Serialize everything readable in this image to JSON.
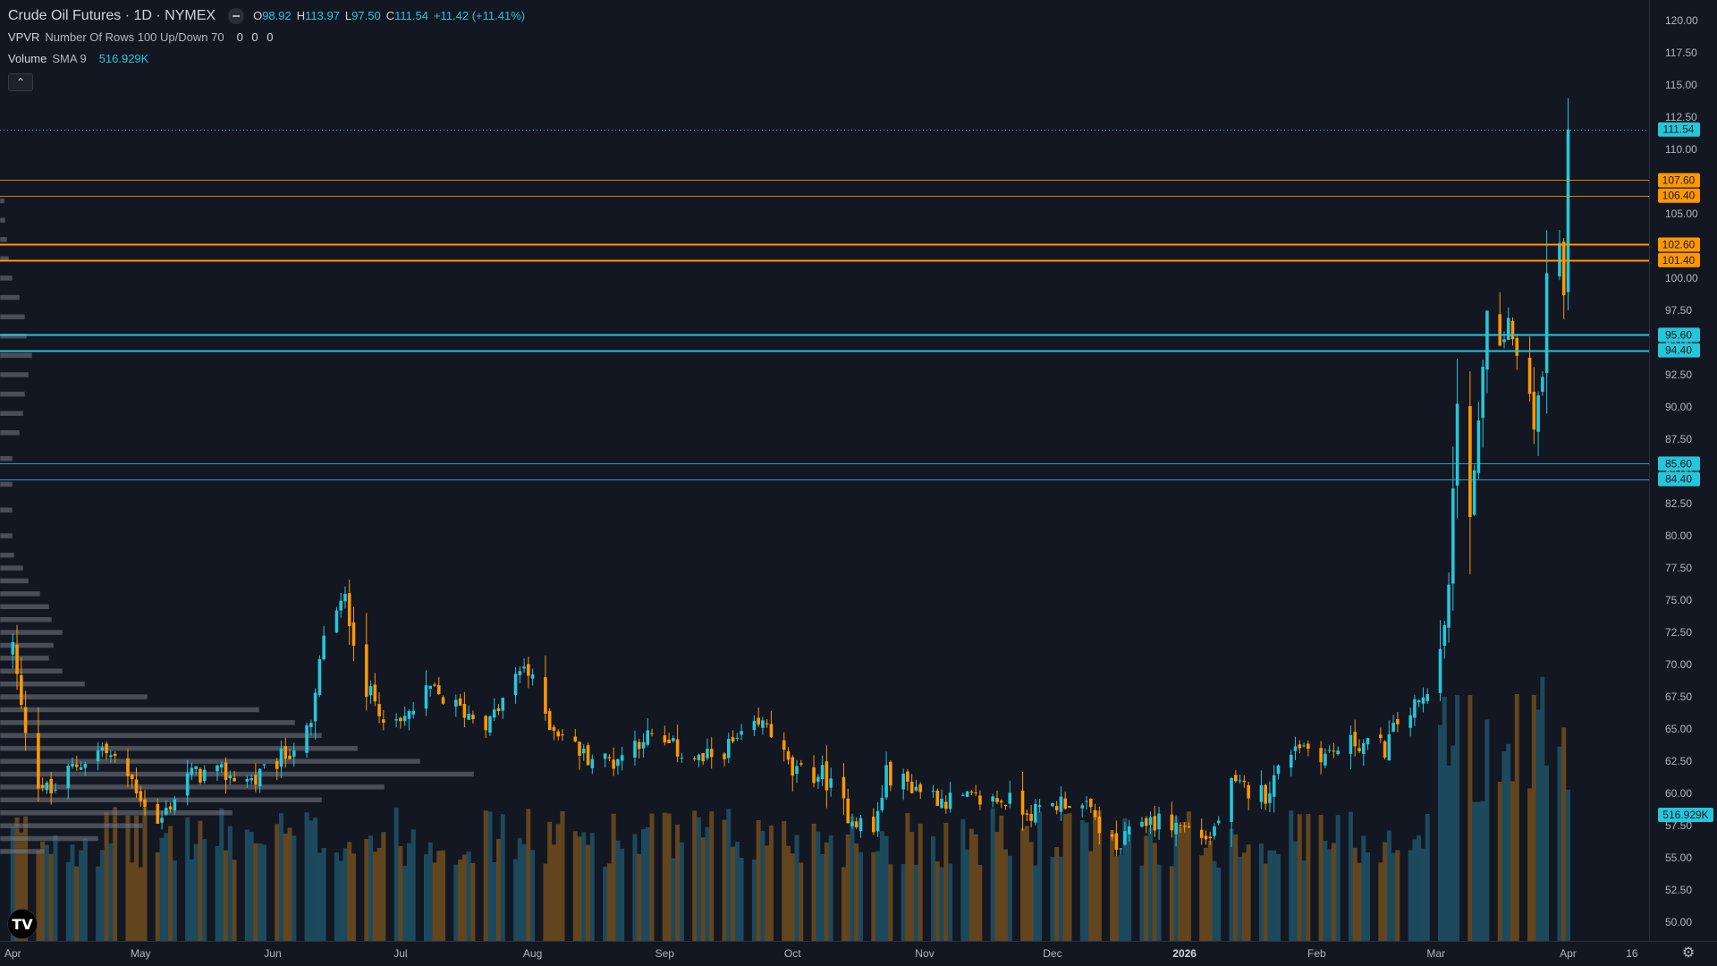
{
  "legend": {
    "title": "Crude Oil Futures · 1D · NYMEX",
    "o_label": "O",
    "o": "98.92",
    "h_label": "H",
    "h": "113.97",
    "l_label": "L",
    "l": "97.50",
    "c_label": "C",
    "c": "111.54",
    "change": "+11.42 (+11.41%)",
    "vpvr_name": "VPVR",
    "vpvr_params": "Number Of Rows 100 Up/Down 70",
    "vpvr_values": "0 0 0",
    "vol_name": "Volume",
    "vol_params": "SMA 9",
    "vol_value": "516.929K"
  },
  "colors": {
    "background": "#131722",
    "up": "#26c6da",
    "down": "#ff9800",
    "vol_up": "#1f4f63",
    "vol_down": "#6b4a1e",
    "profile": "#787b86",
    "axis_text": "#b2b5be"
  },
  "icons": {
    "logo": "TV",
    "settings": "⚙",
    "collapse": "⌃"
  },
  "chart_data": {
    "type": "candlestick",
    "ylim": [
      48.9,
      121.1
    ],
    "y_ticks": [
      "120.00",
      "117.50",
      "115.00",
      "112.50",
      "110.00",
      "107.50",
      "105.00",
      "102.50",
      "100.00",
      "97.50",
      "95.00",
      "92.50",
      "90.00",
      "87.50",
      "85.00",
      "82.50",
      "80.00",
      "77.50",
      "75.00",
      "72.50",
      "70.00",
      "67.50",
      "65.00",
      "62.50",
      "60.00",
      "57.50",
      "55.00",
      "52.50",
      "50.00"
    ],
    "x_labels": [
      {
        "date": "2025-04-01",
        "label": "Apr"
      },
      {
        "date": "2025-05-01",
        "label": "May"
      },
      {
        "date": "2025-06-01",
        "label": "Jun"
      },
      {
        "date": "2025-07-01",
        "label": "Jul"
      },
      {
        "date": "2025-08-01",
        "label": "Aug"
      },
      {
        "date": "2025-09-01",
        "label": "Sep"
      },
      {
        "date": "2025-10-01",
        "label": "Oct"
      },
      {
        "date": "2025-11-01",
        "label": "Nov"
      },
      {
        "date": "2025-12-01",
        "label": "Dec"
      },
      {
        "date": "2026-01-01",
        "label": "2026",
        "bold": true
      },
      {
        "date": "2026-02-01",
        "label": "Feb"
      },
      {
        "date": "2026-03-01",
        "label": "Mar"
      },
      {
        "date": "2026-04-01",
        "label": "Apr"
      },
      {
        "date": "2026-04-16",
        "label": "16"
      }
    ],
    "x_range": [
      "2025-03-29",
      "2026-04-20"
    ],
    "price_labels": [
      {
        "value": 111.54,
        "text": "111.54",
        "color": "#26c6da",
        "line": "dotted"
      },
      {
        "value": 107.6,
        "text": "107.60",
        "color": "#ff9800",
        "line": "thin"
      },
      {
        "value": 106.4,
        "text": "106.40",
        "color": "#ff9800",
        "line": "thin"
      },
      {
        "value": 102.6,
        "text": "102.60",
        "color": "#ff9800",
        "line": "thick"
      },
      {
        "value": 101.4,
        "text": "101.40",
        "color": "#ff9800",
        "line": "thick"
      },
      {
        "value": 95.6,
        "text": "95.60",
        "color": "#26c6da",
        "line": "thick"
      },
      {
        "value": 94.4,
        "text": "94.40",
        "color": "#26c6da",
        "line": "thick"
      },
      {
        "value": 85.6,
        "text": "85.60",
        "color": "#26c6da",
        "line": "thin"
      },
      {
        "value": 84.4,
        "text": "84.40",
        "color": "#26c6da",
        "line": "thin"
      }
    ],
    "volume_label": {
      "text": "516.929K",
      "value": 516929
    },
    "vol_max": 1100000,
    "anchors": [
      [
        "2025-04-01",
        71.5
      ],
      [
        "2025-04-03",
        66.5
      ],
      [
        "2025-04-07",
        61
      ],
      [
        "2025-04-10",
        60
      ],
      [
        "2025-04-15",
        62
      ],
      [
        "2025-04-22",
        63.5
      ],
      [
        "2025-04-29",
        61
      ],
      [
        "2025-05-05",
        57.5
      ],
      [
        "2025-05-12",
        61.5
      ],
      [
        "2025-05-20",
        61.5
      ],
      [
        "2025-05-28",
        61
      ],
      [
        "2025-06-04",
        63
      ],
      [
        "2025-06-10",
        65
      ],
      [
        "2025-06-13",
        72.5
      ],
      [
        "2025-06-18",
        75
      ],
      [
        "2025-06-23",
        68
      ],
      [
        "2025-06-30",
        65
      ],
      [
        "2025-07-08",
        68
      ],
      [
        "2025-07-15",
        66.5
      ],
      [
        "2025-07-22",
        65.5
      ],
      [
        "2025-07-30",
        70
      ],
      [
        "2025-08-05",
        65.5
      ],
      [
        "2025-08-13",
        63
      ],
      [
        "2025-08-20",
        62.5
      ],
      [
        "2025-08-27",
        64.5
      ],
      [
        "2025-09-03",
        63.5
      ],
      [
        "2025-09-10",
        62.5
      ],
      [
        "2025-09-18",
        64
      ],
      [
        "2025-09-25",
        65.5
      ],
      [
        "2025-10-01",
        61.5
      ],
      [
        "2025-10-08",
        61.5
      ],
      [
        "2025-10-14",
        58.5
      ],
      [
        "2025-10-20",
        57
      ],
      [
        "2025-10-23",
        61.5
      ],
      [
        "2025-10-30",
        60.5
      ],
      [
        "2025-11-06",
        59.5
      ],
      [
        "2025-11-13",
        59.5
      ],
      [
        "2025-11-20",
        59.5
      ],
      [
        "2025-11-27",
        58.5
      ],
      [
        "2025-12-04",
        59.5
      ],
      [
        "2025-12-10",
        58.5
      ],
      [
        "2025-12-16",
        55.5
      ],
      [
        "2025-12-22",
        58
      ],
      [
        "2025-12-31",
        57.5
      ],
      [
        "2026-01-07",
        56.5
      ],
      [
        "2026-01-12",
        60.5
      ],
      [
        "2026-01-20",
        60
      ],
      [
        "2026-01-27",
        64
      ],
      [
        "2026-02-03",
        63
      ],
      [
        "2026-02-10",
        64
      ],
      [
        "2026-02-17",
        63.5
      ],
      [
        "2026-02-20",
        65.5
      ],
      [
        "2026-02-27",
        67.5
      ],
      [
        "2026-03-02",
        72
      ],
      [
        "2026-03-04",
        75.5
      ],
      [
        "2026-03-06",
        91
      ],
      [
        "2026-03-09",
        82
      ],
      [
        "2026-03-11",
        88.5
      ],
      [
        "2026-03-13",
        97
      ],
      [
        "2026-03-16",
        95
      ],
      [
        "2026-03-18",
        97
      ],
      [
        "2026-03-20",
        94
      ],
      [
        "2026-03-24",
        89
      ],
      [
        "2026-03-26",
        93
      ],
      [
        "2026-03-27",
        100
      ],
      [
        "2026-03-30",
        102
      ],
      [
        "2026-03-31",
        99
      ],
      [
        "2026-04-01",
        111.54
      ]
    ],
    "profile": {
      "bins": [
        {
          "price": 61.5,
          "width": 530
        },
        {
          "price": 62.5,
          "width": 470
        },
        {
          "price": 63.5,
          "width": 400
        },
        {
          "price": 60.5,
          "width": 430
        },
        {
          "price": 59.5,
          "width": 360
        },
        {
          "price": 64.5,
          "width": 360
        },
        {
          "price": 65.5,
          "width": 330
        },
        {
          "price": 58.5,
          "width": 260
        },
        {
          "price": 66.5,
          "width": 290
        },
        {
          "price": 67.5,
          "width": 165
        },
        {
          "price": 57.5,
          "width": 160
        },
        {
          "price": 68.5,
          "width": 95
        },
        {
          "price": 56.5,
          "width": 110
        },
        {
          "price": 69.5,
          "width": 70
        },
        {
          "price": 70.5,
          "width": 55
        },
        {
          "price": 71.5,
          "width": 60
        },
        {
          "price": 72.5,
          "width": 70
        },
        {
          "price": 55.5,
          "width": 50
        },
        {
          "price": 73.5,
          "width": 58
        },
        {
          "price": 74.5,
          "width": 55
        },
        {
          "price": 75.5,
          "width": 45
        },
        {
          "price": 76.5,
          "width": 32
        },
        {
          "price": 77.5,
          "width": 26
        },
        {
          "price": 78.5,
          "width": 16
        },
        {
          "price": 80,
          "width": 14
        },
        {
          "price": 82,
          "width": 14
        },
        {
          "price": 84,
          "width": 14
        },
        {
          "price": 86,
          "width": 14
        },
        {
          "price": 88,
          "width": 22
        },
        {
          "price": 89.5,
          "width": 26
        },
        {
          "price": 91,
          "width": 28
        },
        {
          "price": 92.5,
          "width": 32
        },
        {
          "price": 94,
          "width": 36
        },
        {
          "price": 95.5,
          "width": 30
        },
        {
          "price": 97,
          "width": 28
        },
        {
          "price": 98.5,
          "width": 22
        },
        {
          "price": 100,
          "width": 14
        },
        {
          "price": 101.5,
          "width": 10
        },
        {
          "price": 103,
          "width": 8
        },
        {
          "price": 104.5,
          "width": 6
        },
        {
          "price": 106,
          "width": 5
        }
      ]
    }
  }
}
